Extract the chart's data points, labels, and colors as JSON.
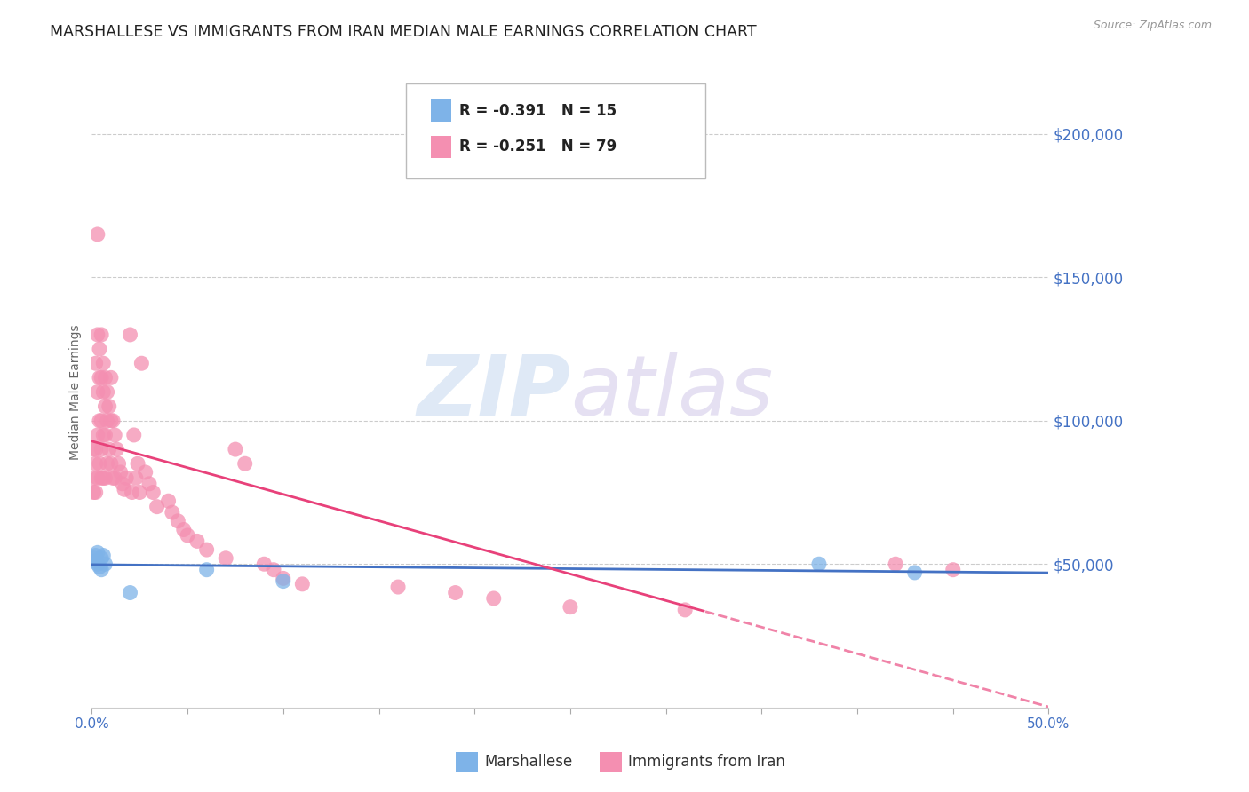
{
  "title": "MARSHALLESE VS IMMIGRANTS FROM IRAN MEDIAN MALE EARNINGS CORRELATION CHART",
  "source": "Source: ZipAtlas.com",
  "ylabel": "Median Male Earnings",
  "ytick_labels": [
    "$50,000",
    "$100,000",
    "$150,000",
    "$200,000"
  ],
  "ytick_values": [
    50000,
    100000,
    150000,
    200000
  ],
  "ymin": 0,
  "ymax": 220000,
  "xmin": 0.0,
  "xmax": 0.5,
  "legend1_r": "R = -0.391",
  "legend1_n": "N = 15",
  "legend2_r": "R = -0.251",
  "legend2_n": "N = 79",
  "legend_label1": "Marshallese",
  "legend_label2": "Immigrants from Iran",
  "color_blue": "#7EB3E8",
  "color_pink": "#F48FB1",
  "color_blue_line": "#4472C4",
  "color_pink_line": "#E8417A",
  "axis_label_color": "#4472C4",
  "watermark_zip": "ZIP",
  "watermark_atlas": "atlas",
  "title_fontsize": 12.5,
  "marshallese_x": [
    0.001,
    0.002,
    0.002,
    0.003,
    0.003,
    0.004,
    0.005,
    0.005,
    0.006,
    0.007,
    0.02,
    0.06,
    0.1,
    0.38,
    0.43
  ],
  "marshallese_y": [
    52000,
    53000,
    51000,
    50000,
    54000,
    49000,
    52000,
    48000,
    53000,
    50000,
    40000,
    48000,
    44000,
    50000,
    47000
  ],
  "iran_x": [
    0.001,
    0.001,
    0.001,
    0.002,
    0.002,
    0.002,
    0.002,
    0.003,
    0.003,
    0.003,
    0.003,
    0.003,
    0.004,
    0.004,
    0.004,
    0.004,
    0.005,
    0.005,
    0.005,
    0.005,
    0.005,
    0.006,
    0.006,
    0.006,
    0.006,
    0.007,
    0.007,
    0.007,
    0.007,
    0.008,
    0.008,
    0.008,
    0.009,
    0.009,
    0.01,
    0.01,
    0.01,
    0.011,
    0.011,
    0.012,
    0.012,
    0.013,
    0.014,
    0.015,
    0.016,
    0.017,
    0.018,
    0.02,
    0.021,
    0.022,
    0.023,
    0.024,
    0.025,
    0.026,
    0.028,
    0.03,
    0.032,
    0.034,
    0.04,
    0.042,
    0.045,
    0.048,
    0.05,
    0.055,
    0.06,
    0.07,
    0.075,
    0.08,
    0.09,
    0.095,
    0.1,
    0.11,
    0.16,
    0.19,
    0.21,
    0.25,
    0.31,
    0.42,
    0.45
  ],
  "iran_y": [
    80000,
    75000,
    90000,
    120000,
    90000,
    85000,
    75000,
    165000,
    130000,
    110000,
    95000,
    80000,
    125000,
    115000,
    100000,
    85000,
    130000,
    115000,
    100000,
    90000,
    80000,
    120000,
    110000,
    95000,
    80000,
    115000,
    105000,
    95000,
    80000,
    110000,
    100000,
    85000,
    105000,
    90000,
    115000,
    100000,
    85000,
    100000,
    80000,
    95000,
    80000,
    90000,
    85000,
    82000,
    78000,
    76000,
    80000,
    130000,
    75000,
    95000,
    80000,
    85000,
    75000,
    120000,
    82000,
    78000,
    75000,
    70000,
    72000,
    68000,
    65000,
    62000,
    60000,
    58000,
    55000,
    52000,
    90000,
    85000,
    50000,
    48000,
    45000,
    43000,
    42000,
    40000,
    38000,
    35000,
    34000,
    50000,
    48000
  ]
}
